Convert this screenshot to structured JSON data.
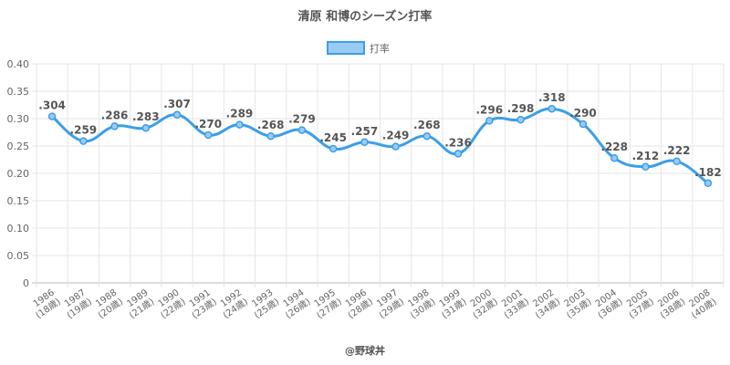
{
  "chart_data": {
    "type": "line",
    "title": "清原 和博のシーズン打率",
    "legend": {
      "label": "打率",
      "position": "top-center"
    },
    "x": [
      [
        "1986",
        "(18歳)"
      ],
      [
        "1987",
        "(19歳)"
      ],
      [
        "1988",
        "(20歳)"
      ],
      [
        "1989",
        "(21歳)"
      ],
      [
        "1990",
        "(22歳)"
      ],
      [
        "1991",
        "(23歳)"
      ],
      [
        "1992",
        "(24歳)"
      ],
      [
        "1993",
        "(25歳)"
      ],
      [
        "1994",
        "(26歳)"
      ],
      [
        "1995",
        "(27歳)"
      ],
      [
        "1996",
        "(28歳)"
      ],
      [
        "1997",
        "(29歳)"
      ],
      [
        "1998",
        "(30歳)"
      ],
      [
        "1999",
        "(31歳)"
      ],
      [
        "2000",
        "(32歳)"
      ],
      [
        "2001",
        "(33歳)"
      ],
      [
        "2002",
        "(34歳)"
      ],
      [
        "2003",
        "(35歳)"
      ],
      [
        "2004",
        "(36歳)"
      ],
      [
        "2005",
        "(37歳)"
      ],
      [
        "2006",
        "(38歳)"
      ],
      [
        "2008",
        "(40歳)"
      ]
    ],
    "series": [
      {
        "name": "打率",
        "values": [
          0.304,
          0.259,
          0.286,
          0.283,
          0.307,
          0.27,
          0.289,
          0.268,
          0.279,
          0.245,
          0.257,
          0.249,
          0.268,
          0.236,
          0.296,
          0.298,
          0.318,
          0.29,
          0.228,
          0.212,
          0.222,
          0.182
        ],
        "labels": [
          ".304",
          ".259",
          ".286",
          ".283",
          ".307",
          ".270",
          ".289",
          ".268",
          ".279",
          ".245",
          ".257",
          ".249",
          ".268",
          ".236",
          ".296",
          ".298",
          ".318",
          ".290",
          ".228",
          ".212",
          ".222",
          ".182"
        ],
        "color": "#3b9fe8",
        "fill": "#9ccbf2"
      }
    ],
    "ylim": [
      0,
      0.4
    ],
    "yticks": [
      "0",
      "0.05",
      "0.10",
      "0.15",
      "0.20",
      "0.25",
      "0.30",
      "0.35",
      "0.40"
    ],
    "grid": true,
    "credit": "@野球丼"
  }
}
